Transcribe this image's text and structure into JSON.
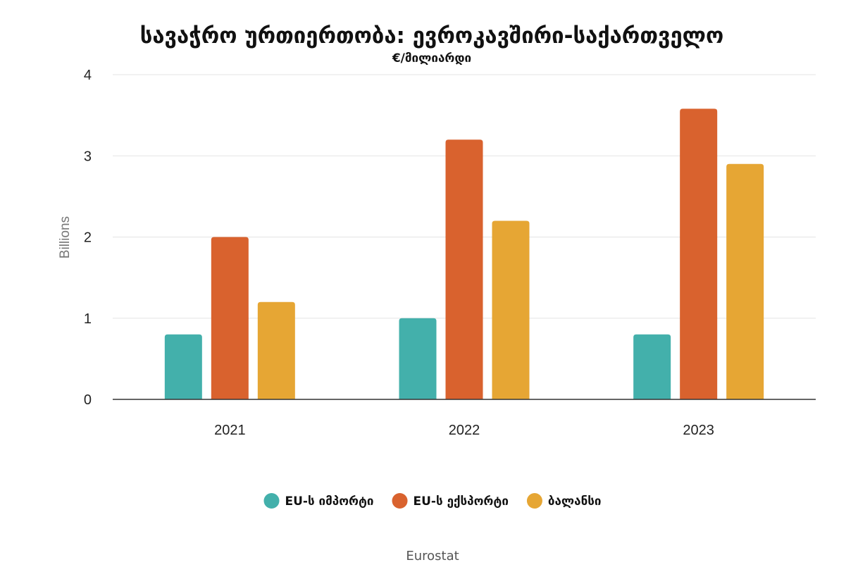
{
  "chart_data": {
    "type": "bar",
    "title": "სავაჭრო ურთიერთობა: ევროკავშირი-საქართველო",
    "subtitle": "€/მილიარდი",
    "ylabel": "Billions",
    "xlabel": "",
    "categories": [
      "2021",
      "2022",
      "2023"
    ],
    "series": [
      {
        "name": "EU-ს იმპორტი",
        "values": [
          0.8,
          1.0,
          0.8
        ],
        "color": "#43b0ab"
      },
      {
        "name": "EU-ს ექსპორტი",
        "values": [
          2.0,
          3.2,
          3.58
        ],
        "color": "#d9622e"
      },
      {
        "name": "ბალანსი",
        "values": [
          1.2,
          2.2,
          2.9
        ],
        "color": "#e6a634"
      }
    ],
    "ylim": [
      0,
      4
    ],
    "yticks": [
      0,
      1,
      2,
      3,
      4
    ],
    "grid": true,
    "legend": "bottom-center",
    "source": "Eurostat"
  }
}
